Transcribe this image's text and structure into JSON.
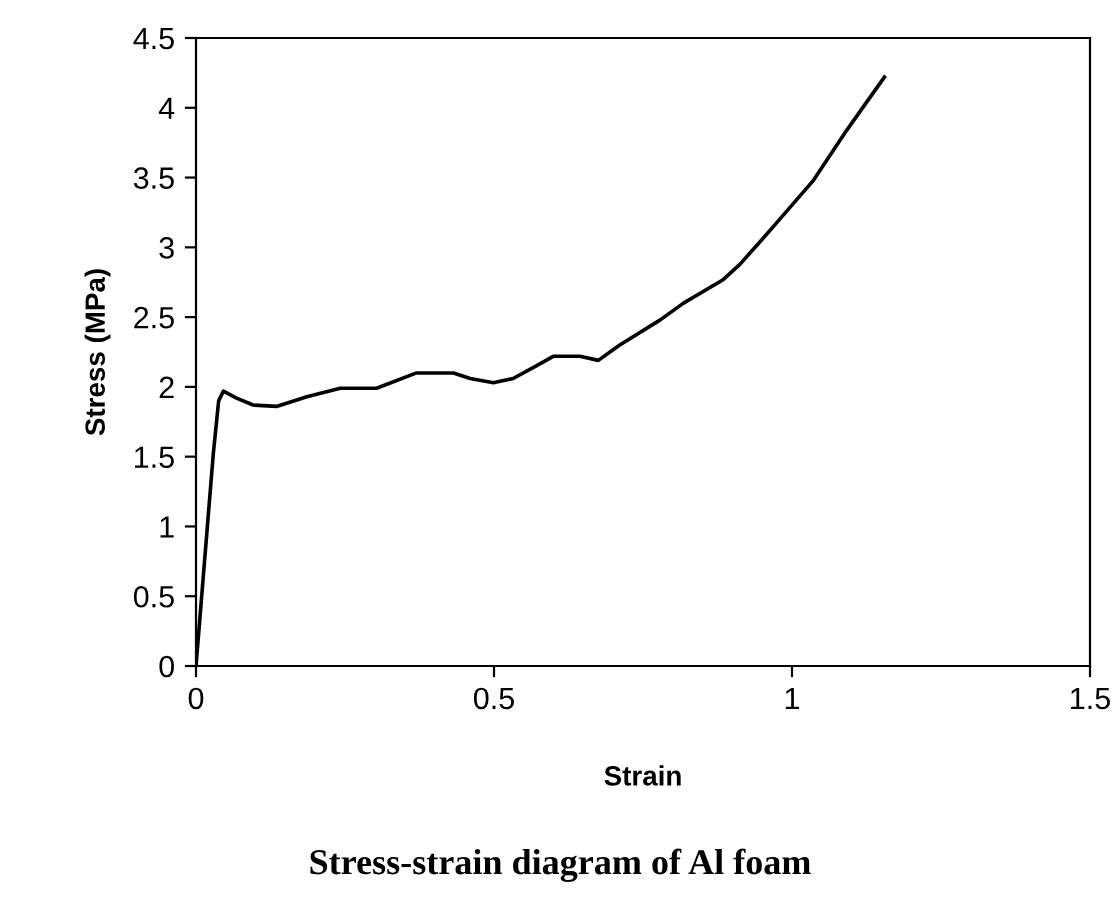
{
  "chart_data": {
    "type": "line",
    "xlabel": "Strain",
    "ylabel": "Stress (MPa)",
    "annotations": [
      "Stress-strain diagram of Al foam"
    ],
    "xlim": [
      0,
      1.5
    ],
    "xticks": [
      0,
      0.5,
      1,
      1.5
    ],
    "ylim": [
      0,
      4.5
    ],
    "yticks": [
      0,
      0.5,
      1,
      1.5,
      2,
      2.5,
      3,
      3.5,
      4,
      4.5
    ],
    "grid": false,
    "legend": false,
    "marker": "none",
    "line_style": "solid",
    "series": [
      {
        "color": "#000000",
        "x": [
          0,
          0.029,
          0.038,
          0.046,
          0.068,
          0.096,
          0.135,
          0.186,
          0.242,
          0.303,
          0.37,
          0.432,
          0.46,
          0.499,
          0.532,
          0.571,
          0.6,
          0.644,
          0.675,
          0.711,
          0.779,
          0.818,
          0.885,
          0.913,
          0.969,
          1.036,
          1.092,
          1.155
        ],
        "values": [
          0,
          1.52,
          1.9,
          1.97,
          1.92,
          1.87,
          1.86,
          1.93,
          1.99,
          1.99,
          2.1,
          2.1,
          2.06,
          2.03,
          2.06,
          2.15,
          2.22,
          2.22,
          2.19,
          2.3,
          2.48,
          2.6,
          2.77,
          2.88,
          3.15,
          3.48,
          3.84,
          4.22
        ]
      }
    ]
  }
}
